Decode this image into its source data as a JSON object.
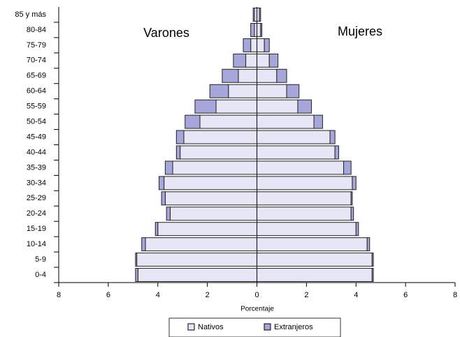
{
  "chart_data": {
    "type": "pyramid",
    "categories": [
      "0-4",
      "5-9",
      "10-14",
      "15-19",
      "20-24",
      "25-29",
      "30-34",
      "35-39",
      "40-44",
      "45-49",
      "50-54",
      "55-59",
      "60-64",
      "65-69",
      "70-74",
      "75-79",
      "80-84",
      "85 y más"
    ],
    "sides": [
      {
        "label": "Varones",
        "direction": "left",
        "series": [
          {
            "name": "Nativos",
            "color": "#e6e6f6",
            "values": [
              4.8,
              4.85,
              4.5,
              4.0,
              3.5,
              3.7,
              3.75,
              3.4,
              3.1,
              2.95,
              2.3,
              1.65,
              1.15,
              0.75,
              0.45,
              0.25,
              0.1,
              0.1
            ]
          },
          {
            "name": "Extranjeros",
            "color": "#a6a6da",
            "values": [
              0.1,
              0.05,
              0.15,
              0.1,
              0.15,
              0.15,
              0.2,
              0.3,
              0.15,
              0.3,
              0.6,
              0.85,
              0.75,
              0.65,
              0.5,
              0.3,
              0.15,
              0.05
            ]
          }
        ]
      },
      {
        "label": "Mujeres",
        "direction": "right",
        "series": [
          {
            "name": "Nativos",
            "color": "#e6e6f6",
            "values": [
              4.65,
              4.65,
              4.45,
              4.0,
              3.8,
              3.8,
              3.85,
              3.5,
              3.15,
              2.95,
              2.3,
              1.65,
              1.2,
              0.8,
              0.5,
              0.3,
              0.15,
              0.1
            ]
          },
          {
            "name": "Extranjeros",
            "color": "#a6a6da",
            "values": [
              0.05,
              0.05,
              0.1,
              0.1,
              0.1,
              0.05,
              0.15,
              0.3,
              0.15,
              0.2,
              0.35,
              0.55,
              0.5,
              0.4,
              0.35,
              0.2,
              0.05,
              0.05
            ]
          }
        ]
      }
    ],
    "xlabel": "Porcentaje",
    "xlim": [
      -8,
      8
    ],
    "xticks": [
      {
        "value": -8,
        "label": "8"
      },
      {
        "value": -6,
        "label": "6"
      },
      {
        "value": -4,
        "label": "4"
      },
      {
        "value": -2,
        "label": "2"
      },
      0,
      2,
      4,
      6,
      8
    ]
  }
}
